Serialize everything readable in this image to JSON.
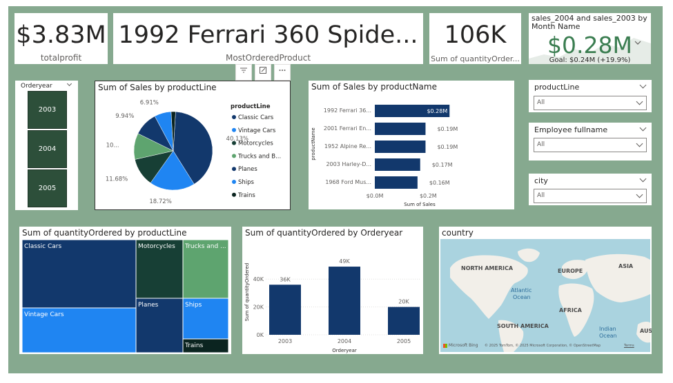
{
  "kpis": {
    "profit": {
      "value": "$3.83M",
      "label": "totalprofit"
    },
    "product": {
      "value": "1992 Ferrari 360 Spide...",
      "label": "MostOrderedProduct"
    },
    "quantity": {
      "value": "106K",
      "label": "Sum of quantityOrder..."
    },
    "sales_kpi": {
      "title": "sales_2004 and sales_2003 by Month Name",
      "value": "$0.28M",
      "goal": "Goal: $0.24M (+19.9%)"
    }
  },
  "visual_header_icons": [
    "filter-icon",
    "focus-mode-icon",
    "more-options-icon"
  ],
  "year_slicer": {
    "title": "Orderyear",
    "items": [
      "2003",
      "2004",
      "2005"
    ]
  },
  "filters": [
    {
      "title": "productLine",
      "value": "All"
    },
    {
      "title": "Employee fullname",
      "value": "All"
    },
    {
      "title": "city",
      "value": "All"
    }
  ],
  "pie_chart": {
    "title": "Sum of Sales by productLine",
    "legend_title": "productLine",
    "chart_data": {
      "type": "pie",
      "title": "Sum of Sales by productLine",
      "series": [
        {
          "name": "Classic Cars",
          "value": 40.13,
          "label": "40.13%",
          "color": "#12386c"
        },
        {
          "name": "Vintage Cars",
          "value": 18.72,
          "label": "18.72%",
          "color": "#1f85f2"
        },
        {
          "name": "Motorcycles",
          "value": 11.68,
          "label": "11.68%",
          "color": "#173f35"
        },
        {
          "name": "Trucks and B...",
          "value": 10.8,
          "label": "10...",
          "color": "#5ea46f"
        },
        {
          "name": "Planes",
          "value": 9.94,
          "label": "9.94%",
          "color": "#12386c"
        },
        {
          "name": "Ships",
          "value": 6.91,
          "label": "6.91%",
          "color": "#1f85f2"
        },
        {
          "name": "Trains",
          "value": 1.82,
          "label": "",
          "color": "#0b2420"
        }
      ]
    }
  },
  "bar_chart": {
    "title": "Sum of Sales by productName",
    "chart_data": {
      "type": "bar",
      "orientation": "horizontal",
      "ylabel": "productName",
      "xlabel": "Sum of Sales",
      "categories": [
        "1992 Ferrari 36...",
        "2001 Ferrari En...",
        "1952 Alpine Re...",
        "2003 Harley-D...",
        "1968 Ford Mus..."
      ],
      "values": [
        0.28,
        0.19,
        0.19,
        0.17,
        0.16
      ],
      "value_labels": [
        "$0.28M",
        "$0.19M",
        "$0.19M",
        "$0.17M",
        "$0.16M"
      ],
      "xticks": [
        "$0.0M",
        "$0.2M"
      ],
      "xlim": [
        0,
        0.3
      ],
      "color": "#12386c"
    }
  },
  "treemap": {
    "title": "Sum of quantityOrdered by productLine",
    "chart_data": {
      "type": "treemap",
      "categories": [
        "Classic Cars",
        "Vintage Cars",
        "Motorcycles",
        "Trucks and ...",
        "Planes",
        "Ships",
        "Trains"
      ],
      "colors": [
        "#12386c",
        "#1f85f2",
        "#173f35",
        "#5ea46f",
        "#12386c",
        "#1f85f2",
        "#0b2420"
      ]
    }
  },
  "column_chart": {
    "title": "Sum of quantityOrdered by Orderyear",
    "chart_data": {
      "type": "bar",
      "categories": [
        "2003",
        "2004",
        "2005"
      ],
      "values": [
        36,
        49,
        20
      ],
      "value_labels": [
        "36K",
        "49K",
        "20K"
      ],
      "xlabel": "Orderyear",
      "ylabel": "Sum of quantityOrdered",
      "yticks": [
        "0K",
        "20K",
        "40K"
      ],
      "ylim": [
        0,
        52
      ],
      "color": "#12386c"
    }
  },
  "map": {
    "title": "country",
    "labels": [
      "NORTH AMERICA",
      "EUROPE",
      "ASIA",
      "AFRICA",
      "SOUTH AMERICA",
      "Atlantic",
      "Ocean",
      "Indian",
      "Ocean",
      "AUS"
    ],
    "logo_text": "Microsoft Bing",
    "attribution": "© 2025 TomTom, © 2025 Microsoft Corporation, © OpenStreetMap",
    "terms": "Terms"
  }
}
